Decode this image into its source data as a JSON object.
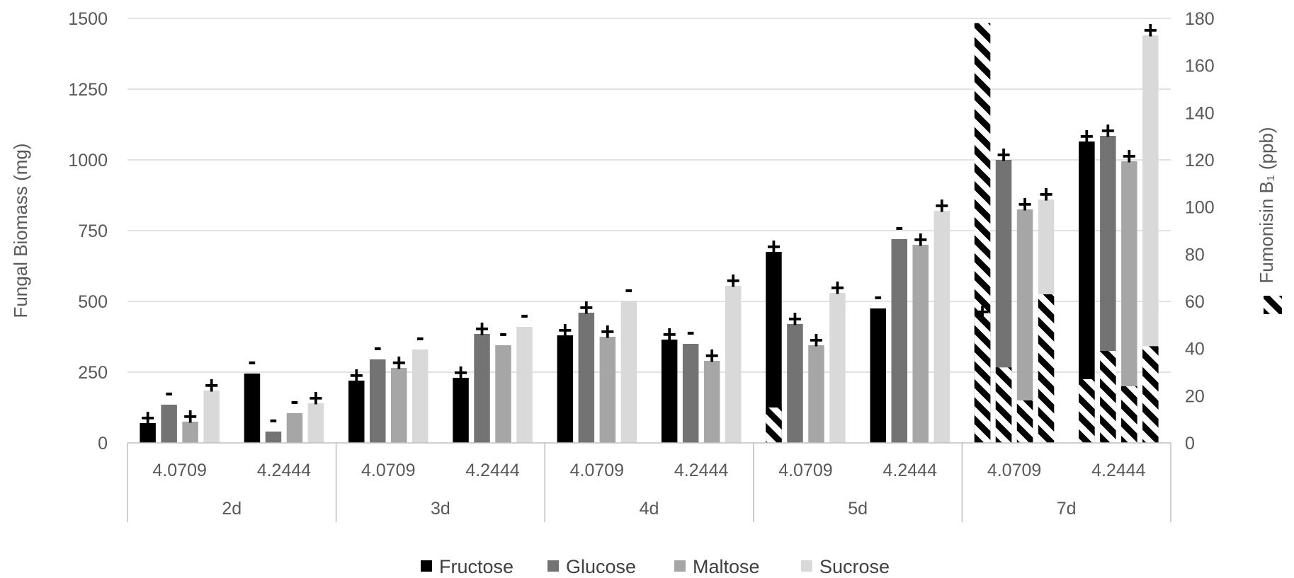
{
  "chart_data": {
    "type": "bar",
    "ylabel": "Fungal Biomass (mg)",
    "y2label": "Fumonisin B₁ (ppb)",
    "ylim": [
      0,
      1500
    ],
    "y2lim": [
      0,
      180
    ],
    "yticks": [
      "0",
      "250",
      "500",
      "750",
      "1000",
      "1250",
      "1500"
    ],
    "y2ticks": [
      "0",
      "20",
      "40",
      "60",
      "80",
      "100",
      "120",
      "140",
      "160",
      "180"
    ],
    "grid": true,
    "legend_position": "bottom",
    "groups": [
      "2d",
      "3d",
      "4d",
      "5d",
      "7d"
    ],
    "subcategories": [
      "4.0709",
      "4.2444",
      "4.0709",
      "4.2444",
      "4.0709",
      "4.2444",
      "4.0709",
      "4.2444",
      "4.0709",
      "4.2444"
    ],
    "series": [
      {
        "name": "Fructose",
        "color": "#000000",
        "values": [
          70,
          245,
          220,
          230,
          380,
          365,
          675,
          475,
          445,
          1065
        ],
        "signs": [
          "+",
          "-",
          "+",
          "+",
          "+",
          "+",
          "+",
          "-",
          "+",
          "+"
        ]
      },
      {
        "name": "Glucose",
        "color": "#737373",
        "values": [
          135,
          40,
          295,
          385,
          460,
          350,
          420,
          720,
          1000,
          1085
        ],
        "signs": [
          "-",
          "-",
          "-",
          "+",
          "+",
          "-",
          "+",
          "-",
          "+",
          "+"
        ]
      },
      {
        "name": "Maltose",
        "color": "#a6a6a6",
        "values": [
          75,
          105,
          265,
          345,
          375,
          290,
          345,
          700,
          825,
          995
        ],
        "signs": [
          "+",
          "-",
          "+",
          "-",
          "+",
          "+",
          "+",
          "+",
          "+",
          "+"
        ]
      },
      {
        "name": "Sucrose",
        "color": "#d9d9d9",
        "values": [
          185,
          140,
          330,
          410,
          500,
          555,
          530,
          820,
          860,
          1440
        ],
        "signs": [
          "+",
          "+",
          "-",
          "-",
          "-",
          "+",
          "+",
          "+",
          "+",
          "+"
        ]
      }
    ],
    "fumonisin_ppb": {
      "series_values": [
        [
          0,
          0,
          0,
          0,
          0,
          0,
          15,
          0,
          178,
          27
        ],
        [
          0,
          0,
          0,
          0,
          0,
          0,
          0,
          0,
          32,
          39
        ],
        [
          0,
          0,
          0,
          0,
          0,
          0,
          0,
          0,
          18,
          24
        ],
        [
          0,
          0,
          0,
          0,
          0,
          0,
          0,
          0,
          63,
          41
        ]
      ]
    }
  }
}
